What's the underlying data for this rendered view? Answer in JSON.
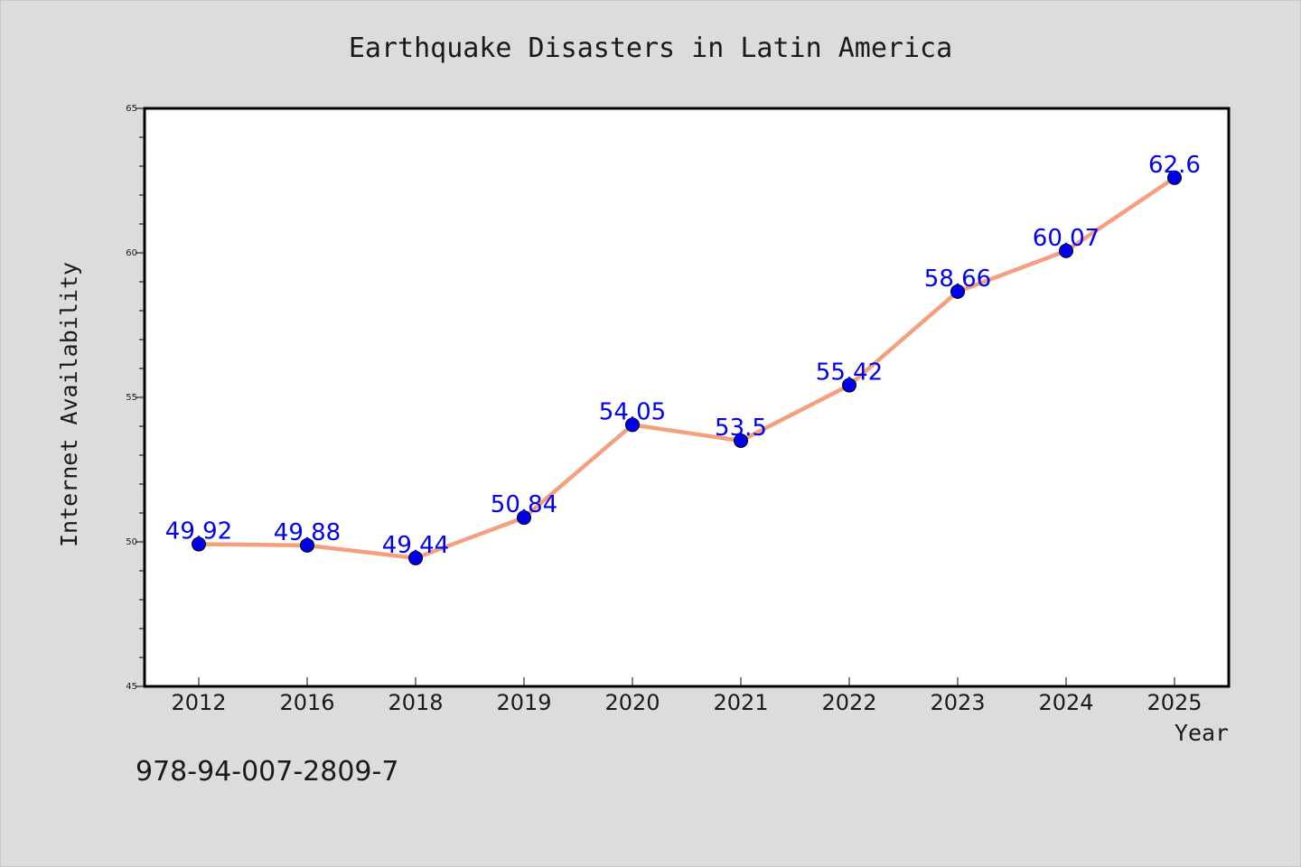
{
  "chart_data": {
    "type": "line",
    "title": "Earthquake Disasters in Latin America",
    "xlabel": "Year",
    "ylabel": "Internet Availability",
    "categories": [
      "2012",
      "2016",
      "2018",
      "2019",
      "2020",
      "2021",
      "2022",
      "2023",
      "2024",
      "2025"
    ],
    "values": [
      49.92,
      49.88,
      49.44,
      50.84,
      54.05,
      53.5,
      55.42,
      58.66,
      60.07,
      62.6
    ],
    "data_labels": [
      "49.92",
      "49.88",
      "49.44",
      "50.84",
      "54.05",
      "53.5",
      "55.42",
      "58.66",
      "60.07",
      "62.6"
    ],
    "ylim": [
      45,
      65
    ],
    "yticks": [
      45,
      50,
      55,
      60,
      65
    ],
    "y_minor_step": 1,
    "grid": false,
    "legend": "none",
    "line_color": "#f4a07e",
    "marker_color": "#0000ee",
    "label_color": "#0000ee"
  },
  "annotation": {
    "isbn": "978-94-007-2809-7"
  }
}
